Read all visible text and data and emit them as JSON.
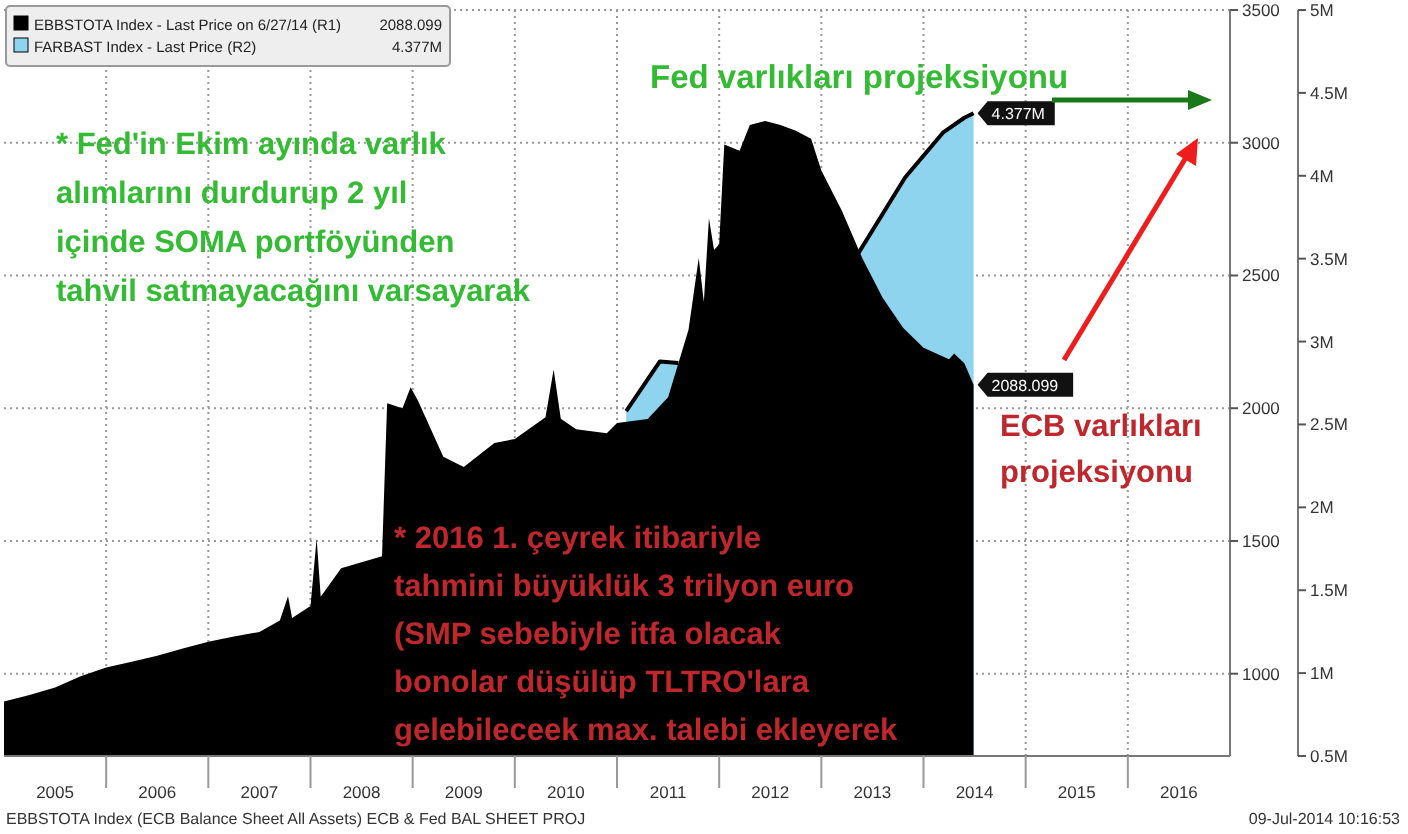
{
  "chart_data": {
    "type": "area",
    "xlim": [
      2005,
      2017
    ],
    "xticks": [
      {
        "value": 2005.5,
        "label": "2005"
      },
      {
        "value": 2006,
        "label": null
      },
      {
        "value": 2006.5,
        "label": "2006"
      },
      {
        "value": 2007,
        "label": null
      },
      {
        "value": 2007.5,
        "label": "2007"
      },
      {
        "value": 2008,
        "label": null
      },
      {
        "value": 2008.5,
        "label": "2008"
      },
      {
        "value": 2009,
        "label": null
      },
      {
        "value": 2009.5,
        "label": "2009"
      },
      {
        "value": 2010,
        "label": null
      },
      {
        "value": 2010.5,
        "label": "2010"
      },
      {
        "value": 2011,
        "label": null
      },
      {
        "value": 2011.5,
        "label": "2011"
      },
      {
        "value": 2012,
        "label": null
      },
      {
        "value": 2012.5,
        "label": "2012"
      },
      {
        "value": 2013,
        "label": null
      },
      {
        "value": 2013.5,
        "label": "2013"
      },
      {
        "value": 2014,
        "label": null
      },
      {
        "value": 2014.5,
        "label": "2014"
      },
      {
        "value": 2015,
        "label": null
      },
      {
        "value": 2015.5,
        "label": "2015"
      },
      {
        "value": 2016,
        "label": null
      },
      {
        "value": 2016.5,
        "label": "2016"
      }
    ],
    "ylim": [
      690,
      3500
    ],
    "yticks": [
      1000,
      1500,
      2000,
      2500,
      3000,
      3500
    ],
    "y2lim": [
      0.5,
      5
    ],
    "y2ticks": [
      {
        "value": 0.5,
        "label": "0.5M"
      },
      {
        "value": 1,
        "label": "1M"
      },
      {
        "value": 1.5,
        "label": "1.5M"
      },
      {
        "value": 2,
        "label": "2M"
      },
      {
        "value": 2.5,
        "label": "2.5M"
      },
      {
        "value": 3,
        "label": "3M"
      },
      {
        "value": 3.5,
        "label": "3.5M"
      },
      {
        "value": 4,
        "label": "4M"
      },
      {
        "value": 4.5,
        "label": "4.5M"
      },
      {
        "value": 5,
        "label": "5M"
      }
    ],
    "grid": true,
    "legend": "top left",
    "series": [
      {
        "name": "EBBSTOTA Index - Last Price on 6/27/14 (R1)",
        "color": "#000000",
        "x": [
          2005.0,
          2005.25,
          2005.5,
          2005.75,
          2006.0,
          2006.25,
          2006.5,
          2006.75,
          2007.0,
          2007.25,
          2007.5,
          2007.7,
          2007.78,
          2007.82,
          2008.0,
          2008.06,
          2008.1,
          2008.3,
          2008.5,
          2008.7,
          2008.75,
          2008.9,
          2008.98,
          2009.05,
          2009.3,
          2009.5,
          2009.8,
          2010.0,
          2010.3,
          2010.38,
          2010.45,
          2010.6,
          2010.9,
          2011.0,
          2011.3,
          2011.5,
          2011.7,
          2011.8,
          2011.85,
          2011.9,
          2011.95,
          2012.0,
          2012.05,
          2012.2,
          2012.3,
          2012.45,
          2012.6,
          2012.75,
          2012.9,
          2013.0,
          2013.2,
          2013.4,
          2013.6,
          2013.8,
          2014.0,
          2014.25,
          2014.3,
          2014.4,
          2014.49
        ],
        "values": [
          895,
          920,
          948,
          990,
          1023,
          1045,
          1068,
          1095,
          1120,
          1140,
          1157,
          1200,
          1292,
          1210,
          1255,
          1509,
          1290,
          1397,
          1420,
          1442,
          2019,
          2000,
          2079,
          2030,
          1817,
          1779,
          1869,
          1884,
          1966,
          2146,
          1960,
          1921,
          1906,
          1944,
          1959,
          2041,
          2296,
          2566,
          2400,
          2716,
          2596,
          2618,
          2993,
          2970,
          3067,
          3082,
          3067,
          3045,
          3015,
          2895,
          2745,
          2566,
          2416,
          2303,
          2228,
          2184,
          2206,
          2169,
          2088.099
        ],
        "value_labels": [
          null,
          null,
          null,
          null,
          null,
          null,
          null,
          null,
          null,
          null,
          null,
          null,
          null,
          null,
          null,
          null,
          null,
          null,
          null,
          null,
          null,
          null,
          null,
          null,
          null,
          null,
          null,
          null,
          null,
          null,
          null,
          null,
          null,
          null,
          null,
          null,
          null,
          null,
          null,
          null,
          null,
          null,
          null,
          null,
          null,
          null,
          null,
          null,
          null,
          null,
          null,
          null,
          null,
          null,
          null,
          null,
          null,
          null,
          "2088.099"
        ]
      },
      {
        "name": "FARBAST Index - Last Price (R2)",
        "color": "#8fd4ee",
        "axis": "y2",
        "x": [
          2011.09,
          2011.42,
          2011.6,
          2011.7,
          2013.25,
          2013.33,
          2013.82,
          2014.19,
          2014.4,
          2014.49
        ],
        "values": [
          2.58,
          2.88,
          2.87,
          null,
          null,
          3.5,
          3.99,
          4.26,
          4.35,
          4.377
        ],
        "value_labels": [
          null,
          null,
          null,
          null,
          null,
          null,
          null,
          null,
          null,
          "4.377M"
        ]
      }
    ],
    "annotations": [
      "* Fed'in Ekim ayında varlık\nalımlarını durdurup 2 yıl\niçinde SOMA portföyünden\ntahvil satmayacağını varsayarak",
      "Fed varlıkları projeksiyonu",
      "ECB varlıkları\nprojeksiyonu",
      "* 2016 1. çeyrek itibariyle\ntahmini büyüklük 3 trilyon euro\n(SMP sebebiyle itfa olacak\nbonolar düşülüp TLTRO'lara\ngelebileceek max. talebi ekleyerek",
      "EBBSTOTA Index (ECB Balance Sheet All Assets) ECB & Fed BAL SHEET PROJ",
      "09-Jul-2014 10:16:53"
    ]
  }
}
